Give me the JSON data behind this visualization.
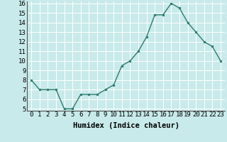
{
  "x": [
    0,
    1,
    2,
    3,
    4,
    5,
    6,
    7,
    8,
    9,
    10,
    11,
    12,
    13,
    14,
    15,
    16,
    17,
    18,
    19,
    20,
    21,
    22,
    23
  ],
  "y": [
    8,
    7,
    7,
    7,
    5,
    5,
    6.5,
    6.5,
    6.5,
    7,
    7.5,
    9.5,
    10,
    11,
    12.5,
    14.8,
    14.8,
    16,
    15.5,
    14,
    13,
    12,
    11.5,
    10
  ],
  "line_color": "#2e7d6e",
  "marker_color": "#2e7d6e",
  "bg_color": "#c8eaea",
  "grid_color": "#ffffff",
  "xlabel": "Humidex (Indice chaleur)",
  "ylim_min": 5,
  "ylim_max": 16,
  "xlim_min": -0.5,
  "xlim_max": 23.5,
  "yticks": [
    5,
    6,
    7,
    8,
    9,
    10,
    11,
    12,
    13,
    14,
    15,
    16
  ],
  "xticks": [
    0,
    1,
    2,
    3,
    4,
    5,
    6,
    7,
    8,
    9,
    10,
    11,
    12,
    13,
    14,
    15,
    16,
    17,
    18,
    19,
    20,
    21,
    22,
    23
  ],
  "xlabel_fontsize": 7.5,
  "tick_fontsize": 6.5
}
